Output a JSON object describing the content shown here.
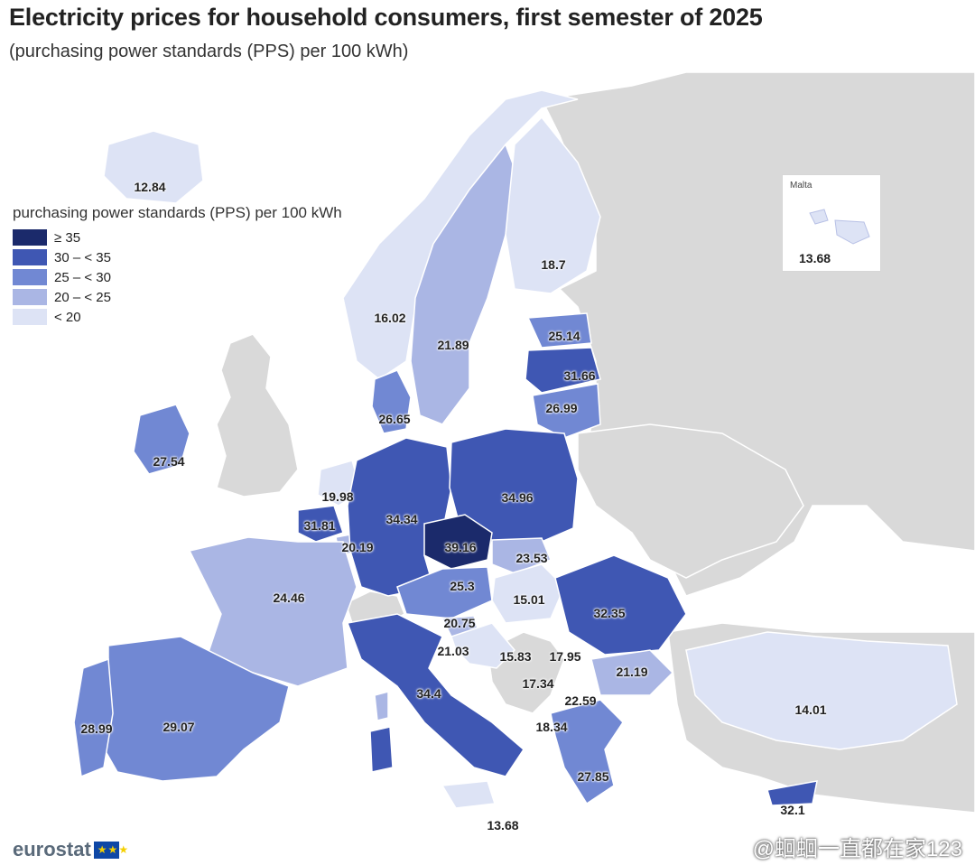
{
  "title": "Electricity prices for household consumers, first semester of 2025",
  "subtitle": "(purchasing power standards (PPS) per 100 kWh)",
  "legend": {
    "title": "purchasing power standards (PPS) per 100 kWh",
    "items": [
      {
        "label": "≥ 35",
        "color": "#1b2a6b"
      },
      {
        "label": "30 – < 35",
        "color": "#3f57b3"
      },
      {
        "label": "25 – < 30",
        "color": "#7188d3"
      },
      {
        "label": "20 – < 25",
        "color": "#aab6e4"
      },
      {
        "label": "< 20",
        "color": "#dde3f5"
      }
    ]
  },
  "values": [
    {
      "text": "12.84"
    },
    {
      "text": "16.02"
    },
    {
      "text": "21.89"
    },
    {
      "text": "18.7"
    },
    {
      "text": "25.14"
    },
    {
      "text": "31.66"
    },
    {
      "text": "26.99"
    },
    {
      "text": "26.65"
    },
    {
      "text": "27.54"
    },
    {
      "text": "19.98"
    },
    {
      "text": "34.34"
    },
    {
      "text": "34.96"
    },
    {
      "text": "31.81"
    },
    {
      "text": "20.19"
    },
    {
      "text": "39.16"
    },
    {
      "text": "23.53"
    },
    {
      "text": "24.46"
    },
    {
      "text": "25.3"
    },
    {
      "text": "15.01"
    },
    {
      "text": "32.35"
    },
    {
      "text": "20.75"
    },
    {
      "text": "21.03"
    },
    {
      "text": "15.83"
    },
    {
      "text": "17.95"
    },
    {
      "text": "17.34"
    },
    {
      "text": "21.19"
    },
    {
      "text": "22.59"
    },
    {
      "text": "34.4"
    },
    {
      "text": "18.34"
    },
    {
      "text": "28.99"
    },
    {
      "text": "29.07"
    },
    {
      "text": "27.85"
    },
    {
      "text": "14.01"
    },
    {
      "text": "32.1"
    },
    {
      "text": "13.68"
    }
  ],
  "inset": {
    "title": "Malta",
    "value": "13.68"
  },
  "logo": "eurostat",
  "watermark": "@蛔蛔一直都在家123",
  "colors": {
    "non_eu_land": "#d9d9d9",
    "sea": "#ffffff",
    "borders": "#ffffff"
  }
}
